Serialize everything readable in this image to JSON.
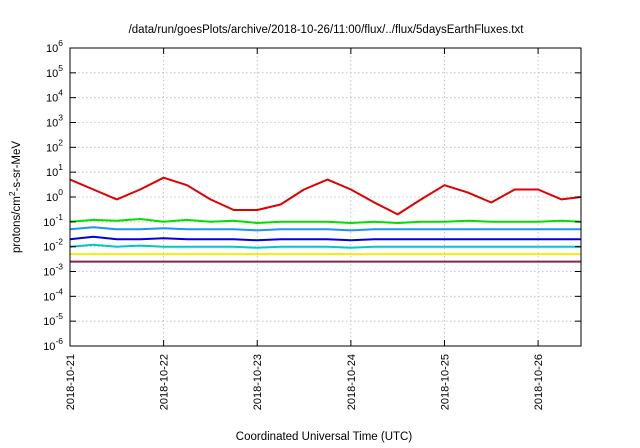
{
  "chart_data": {
    "type": "line",
    "title": "/data/run/goesPlots/archive/2018-10-26/11:00/flux/../flux/5daysEarthFluxes.txt",
    "xlabel": "Coordinated Universal Time (UTC)",
    "ylabel": "protons/cm²-s-sr-MeV",
    "yscale": "log",
    "ylim": [
      1e-06,
      1000000.0
    ],
    "xlim": [
      "2018-10-21T00:00",
      "2018-10-26T11:00"
    ],
    "grid": true,
    "x_ticks": [
      "2018-10-21",
      "2018-10-22",
      "2018-10-23",
      "2018-10-24",
      "2018-10-25",
      "2018-10-26"
    ],
    "y_ticks": [
      {
        "base": "10",
        "exp": "-6"
      },
      {
        "base": "10",
        "exp": "-5"
      },
      {
        "base": "10",
        "exp": "-4"
      },
      {
        "base": "10",
        "exp": "-3"
      },
      {
        "base": "10",
        "exp": "-2"
      },
      {
        "base": "10",
        "exp": "-1"
      },
      {
        "base": "10",
        "exp": "0"
      },
      {
        "base": "10",
        "exp": "1"
      },
      {
        "base": "10",
        "exp": "2"
      },
      {
        "base": "10",
        "exp": "3"
      },
      {
        "base": "10",
        "exp": "4"
      },
      {
        "base": "10",
        "exp": "5"
      },
      {
        "base": "10",
        "exp": "6"
      }
    ],
    "x": [
      "2018-10-21T00:00",
      "2018-10-21T06:00",
      "2018-10-21T12:00",
      "2018-10-21T18:00",
      "2018-10-22T00:00",
      "2018-10-22T06:00",
      "2018-10-22T12:00",
      "2018-10-22T18:00",
      "2018-10-23T00:00",
      "2018-10-23T06:00",
      "2018-10-23T12:00",
      "2018-10-23T18:00",
      "2018-10-24T00:00",
      "2018-10-24T06:00",
      "2018-10-24T12:00",
      "2018-10-24T18:00",
      "2018-10-25T00:00",
      "2018-10-25T06:00",
      "2018-10-25T12:00",
      "2018-10-25T18:00",
      "2018-10-26T00:00",
      "2018-10-26T06:00",
      "2018-10-26T11:00"
    ],
    "series": [
      {
        "color": "#e00000",
        "values": [
          5,
          2,
          0.8,
          2,
          6,
          3,
          0.8,
          0.3,
          0.3,
          0.5,
          2,
          5,
          2,
          0.6,
          0.2,
          0.8,
          3,
          1.5,
          0.6,
          2,
          2,
          0.8,
          1
        ]
      },
      {
        "color": "#00e000",
        "values": [
          0.1,
          0.12,
          0.11,
          0.13,
          0.1,
          0.12,
          0.1,
          0.11,
          0.09,
          0.1,
          0.1,
          0.1,
          0.09,
          0.1,
          0.09,
          0.1,
          0.1,
          0.11,
          0.1,
          0.1,
          0.1,
          0.11,
          0.1
        ]
      },
      {
        "color": "#1e90ff",
        "values": [
          0.05,
          0.06,
          0.05,
          0.05,
          0.055,
          0.05,
          0.05,
          0.05,
          0.045,
          0.05,
          0.05,
          0.05,
          0.045,
          0.05,
          0.05,
          0.05,
          0.05,
          0.05,
          0.05,
          0.05,
          0.05,
          0.05,
          0.05
        ]
      },
      {
        "color": "#0000e0",
        "values": [
          0.02,
          0.025,
          0.02,
          0.02,
          0.022,
          0.02,
          0.02,
          0.02,
          0.018,
          0.02,
          0.02,
          0.02,
          0.018,
          0.02,
          0.02,
          0.02,
          0.02,
          0.02,
          0.02,
          0.02,
          0.02,
          0.02,
          0.02
        ]
      },
      {
        "color": "#00c8c8",
        "values": [
          0.01,
          0.012,
          0.01,
          0.011,
          0.01,
          0.01,
          0.01,
          0.01,
          0.009,
          0.01,
          0.01,
          0.01,
          0.009,
          0.01,
          0.01,
          0.01,
          0.01,
          0.01,
          0.01,
          0.01,
          0.01,
          0.01,
          0.01
        ]
      },
      {
        "color": "#f0f000",
        "values": [
          0.005,
          0.005,
          0.005,
          0.005,
          0.005,
          0.005,
          0.005,
          0.005,
          0.005,
          0.005,
          0.005,
          0.005,
          0.005,
          0.005,
          0.005,
          0.005,
          0.005,
          0.005,
          0.005,
          0.005,
          0.005,
          0.005,
          0.005
        ]
      },
      {
        "color": "#8b2252",
        "values": [
          0.0025,
          0.0025,
          0.0025,
          0.0025,
          0.0025,
          0.0025,
          0.0025,
          0.0025,
          0.0025,
          0.0025,
          0.0025,
          0.0025,
          0.0025,
          0.0025,
          0.0025,
          0.0025,
          0.0025,
          0.0025,
          0.0025,
          0.0025,
          0.0025,
          0.0025,
          0.0025
        ]
      }
    ]
  }
}
